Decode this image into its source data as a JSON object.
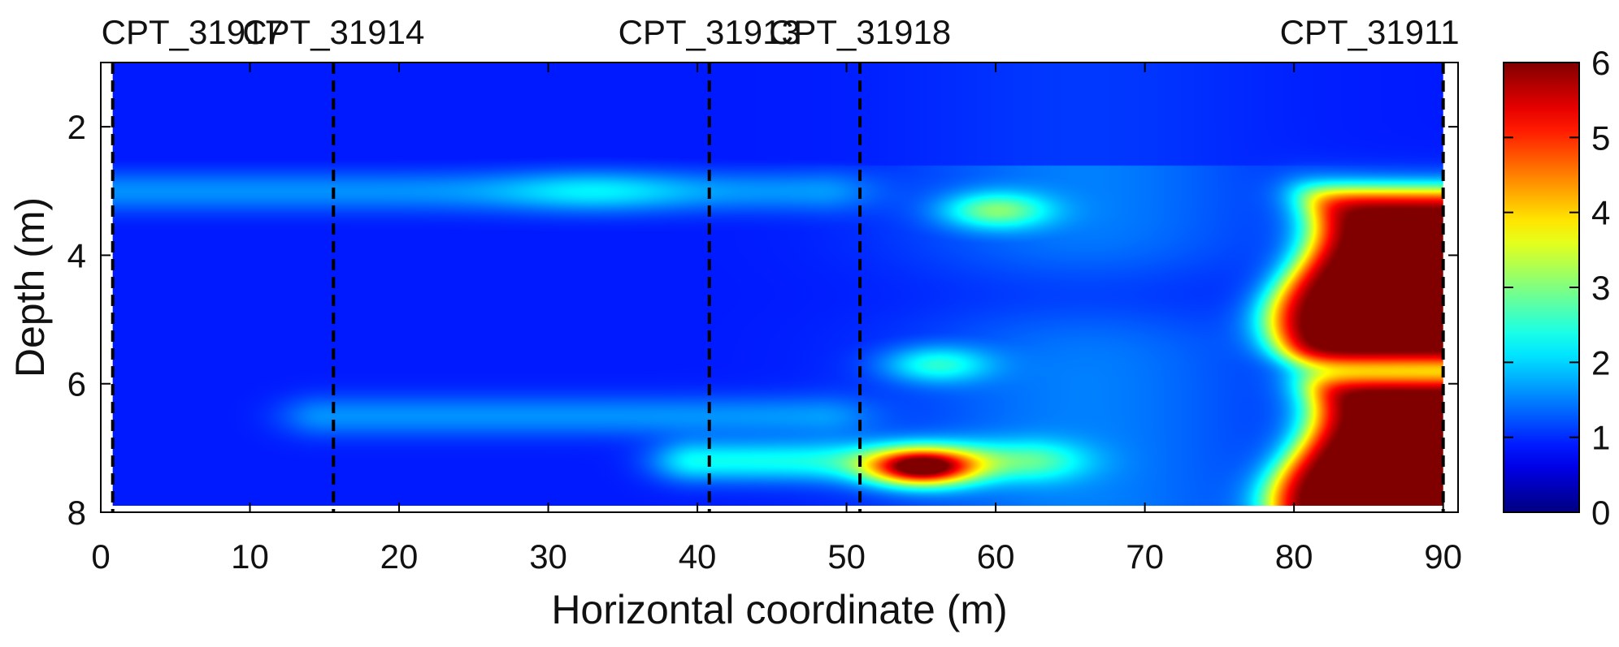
{
  "chart_data": {
    "type": "heatmap",
    "title": "",
    "xlabel": "Horizontal coordinate (m)",
    "ylabel": "Depth (m)",
    "xlim": [
      0,
      91
    ],
    "ylim": [
      8,
      1
    ],
    "x_ticks": [
      "0",
      "10",
      "20",
      "30",
      "40",
      "50",
      "60",
      "70",
      "80",
      "90"
    ],
    "y_ticks": [
      "2",
      "4",
      "6",
      "8"
    ],
    "colorbar": {
      "min": 0,
      "max": 6,
      "ticks": [
        "0",
        "1",
        "2",
        "3",
        "4",
        "5",
        "6"
      ],
      "colormap": "jet"
    },
    "cpt_soundings": [
      {
        "name": "CPT_31917",
        "x": 0.8
      },
      {
        "name": "CPT_31914",
        "x": 15.6
      },
      {
        "name": "CPT_31913",
        "x": 40.8
      },
      {
        "name": "CPT_31918",
        "x": 50.9
      },
      {
        "name": "CPT_31911",
        "x": 90
      }
    ],
    "field": {
      "x_range": [
        0.8,
        90
      ],
      "depth_range": [
        1.0,
        7.9
      ],
      "background_value": 0.9,
      "features": [
        {
          "kind": "layer",
          "depth": 3.0,
          "x_from": 0.8,
          "x_to": 48,
          "value": 1.6,
          "peak_x": 33,
          "peak_value": 2.2
        },
        {
          "kind": "layer",
          "depth": 6.5,
          "x_from": 15,
          "x_to": 48,
          "value": 1.6
        },
        {
          "kind": "layer",
          "depth": 7.2,
          "x_from": 40,
          "x_to": 62,
          "value": 2.3
        },
        {
          "kind": "lens",
          "x": 55,
          "depth": 7.3,
          "value": 5.3
        },
        {
          "kind": "lens",
          "x": 60,
          "depth": 3.3,
          "value": 2.6
        },
        {
          "kind": "lens",
          "x": 56,
          "depth": 5.7,
          "value": 2.2
        },
        {
          "kind": "zone",
          "x_from": 78,
          "x_to": 90,
          "depth_from": 3.0,
          "depth_to": 7.9,
          "value": 6.5
        }
      ]
    }
  }
}
